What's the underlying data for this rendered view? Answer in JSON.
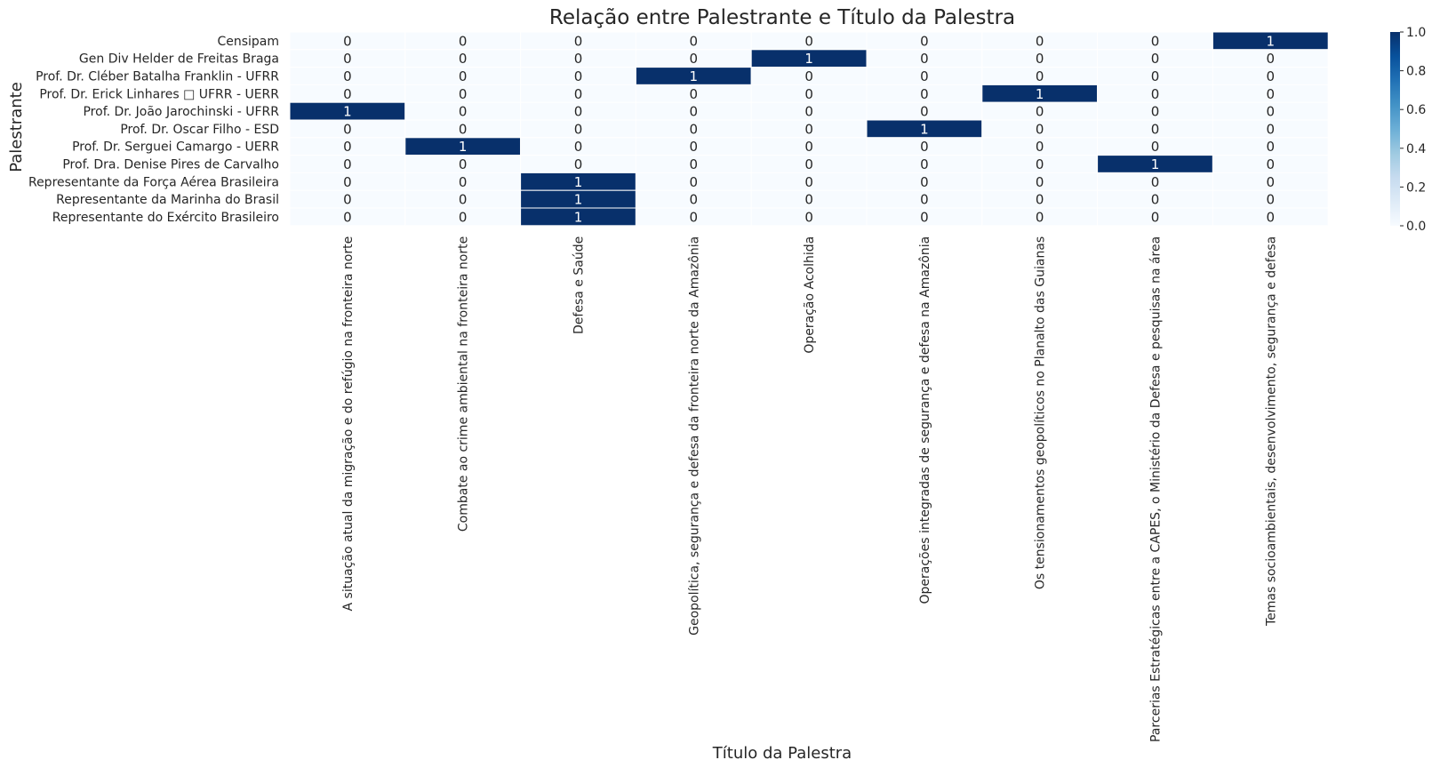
{
  "chart_data": {
    "type": "heatmap",
    "title": "Relação entre Palestrante e Título da Palestra",
    "xlabel": "Título da Palestra",
    "ylabel": "Palestrante",
    "rows": [
      "Censipam",
      "Gen Div Helder de Freitas Braga",
      "Prof. Dr. Cléber Batalha Franklin - UFRR",
      "Prof. Dr. Erick Linhares □ UFRR - UERR",
      "Prof. Dr. João Jarochinski - UFRR",
      "Prof. Dr. Oscar Filho - ESD",
      "Prof. Dr. Serguei Camargo - UERR",
      "Prof. Dra. Denise Pires de Carvalho",
      "Representante da Força Aérea Brasileira",
      "Representante da Marinha do Brasil",
      "Representante do Exército Brasileiro"
    ],
    "columns": [
      "A situação atual da migração e do refúgio na fronteira norte",
      "Combate ao crime ambiental na fronteira norte",
      "Defesa e Saúde",
      "Geopolítica, segurança e defesa da fronteira norte da Amazônia",
      "Operação Acolhida",
      "Operações integradas de segurança e defesa na Amazônia",
      "Os tensionamentos geopolíticos no Planalto das Guianas",
      "Parcerias Estratégicas entre a CAPES, o Ministério da Defesa e pesquisas na área",
      "Temas socioambientais, desenvolvimento, segurança e defesa"
    ],
    "values": [
      [
        0,
        0,
        0,
        0,
        0,
        0,
        0,
        0,
        1
      ],
      [
        0,
        0,
        0,
        0,
        1,
        0,
        0,
        0,
        0
      ],
      [
        0,
        0,
        0,
        1,
        0,
        0,
        0,
        0,
        0
      ],
      [
        0,
        0,
        0,
        0,
        0,
        0,
        1,
        0,
        0
      ],
      [
        1,
        0,
        0,
        0,
        0,
        0,
        0,
        0,
        0
      ],
      [
        0,
        0,
        0,
        0,
        0,
        1,
        0,
        0,
        0
      ],
      [
        0,
        1,
        0,
        0,
        0,
        0,
        0,
        0,
        0
      ],
      [
        0,
        0,
        0,
        0,
        0,
        0,
        0,
        1,
        0
      ],
      [
        0,
        0,
        1,
        0,
        0,
        0,
        0,
        0,
        0
      ],
      [
        0,
        0,
        1,
        0,
        0,
        0,
        0,
        0,
        0
      ],
      [
        0,
        0,
        1,
        0,
        0,
        0,
        0,
        0,
        0
      ]
    ],
    "vmin": 0,
    "vmax": 1,
    "colormap": "Blues",
    "color_low": "#f7fbff",
    "color_high": "#08306b",
    "colorbar_ticks": [
      "0.0",
      "0.2",
      "0.4",
      "0.6",
      "0.8",
      "1.0"
    ]
  }
}
